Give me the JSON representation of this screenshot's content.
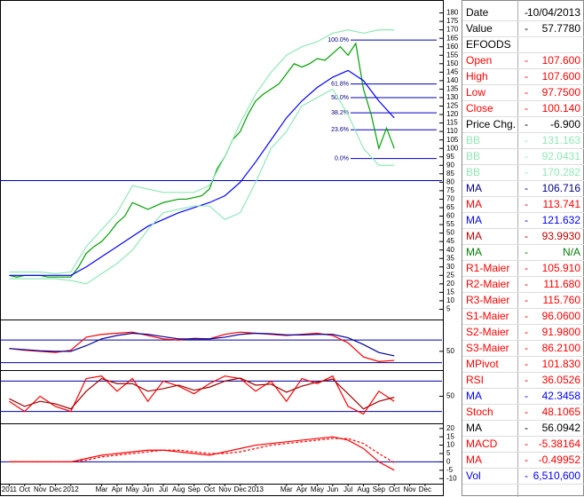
{
  "chart_data": [
    {
      "type": "line",
      "xlim": [
        -0.6,
        28.1
      ],
      "ylim": [
        0,
        185
      ],
      "yticks": [
        5,
        10,
        15,
        20,
        25,
        30,
        35,
        40,
        45,
        50,
        55,
        60,
        65,
        70,
        75,
        80,
        85,
        90,
        95,
        100,
        105,
        110,
        115,
        120,
        125,
        130,
        135,
        140,
        145,
        150,
        155,
        160,
        165,
        170,
        175,
        180
      ],
      "x": [
        0,
        1,
        2,
        3,
        4,
        5,
        6,
        7,
        8,
        9,
        10,
        11,
        12,
        13,
        14,
        15,
        16,
        17,
        18,
        19,
        20,
        21,
        22,
        23,
        24,
        25
      ],
      "series": [
        {
          "color": "#00a000",
          "x": [
            0,
            0.5,
            1,
            1.5,
            2,
            2.5,
            3,
            3.5,
            4,
            4.5,
            5,
            5.5,
            6,
            6.5,
            7,
            7.5,
            8,
            8.5,
            9,
            9.5,
            10,
            10.5,
            11,
            11.5,
            12,
            12.5,
            13,
            13.5,
            14,
            14.5,
            15,
            15.5,
            16,
            16.5,
            17,
            17.5,
            18,
            18.5,
            19,
            19.5,
            20,
            20.5,
            21,
            21.5,
            22,
            22.5,
            23,
            23.5,
            24,
            24.5,
            25
          ],
          "values": [
            25,
            24,
            25,
            25,
            25,
            24,
            24,
            24,
            24,
            30,
            38,
            42,
            45,
            50,
            56,
            60,
            68,
            66,
            64,
            66,
            68,
            69,
            70,
            70,
            71,
            72,
            76,
            88,
            95,
            105,
            110,
            120,
            128,
            132,
            135,
            138,
            144,
            150,
            148,
            150,
            153,
            152,
            156,
            160,
            155,
            162,
            135,
            120,
            100,
            112,
            100
          ]
        },
        {
          "color": "#0000ff",
          "values": [
            25,
            25,
            25,
            25,
            25,
            30,
            36,
            42,
            48,
            54,
            58,
            62,
            65,
            68,
            72,
            80,
            92,
            105,
            118,
            128,
            136,
            142,
            146,
            140,
            128,
            118
          ]
        },
        {
          "color": "#90e8b8",
          "values": [
            27,
            27,
            27,
            26,
            27,
            42,
            52,
            62,
            78,
            76,
            74,
            74,
            74,
            78,
            95,
            115,
            132,
            145,
            155,
            160,
            163,
            168,
            170,
            168,
            170,
            170
          ]
        },
        {
          "color": "#90e8b8",
          "values": [
            23,
            23,
            23,
            23,
            22,
            20,
            26,
            32,
            40,
            52,
            62,
            64,
            66,
            66,
            58,
            62,
            80,
            100,
            110,
            125,
            130,
            135,
            120,
            100,
            90,
            90
          ]
        }
      ],
      "hlines": [
        81
      ],
      "annotations": [
        {
          "label": "100.0%",
          "value": 164
        },
        {
          "label": "61.8%",
          "value": 138
        },
        {
          "label": "50.0%",
          "value": 130
        },
        {
          "label": "38.2%",
          "value": 121
        },
        {
          "label": "23.6%",
          "value": 111
        },
        {
          "label": "0.0%",
          "value": 94
        }
      ]
    },
    {
      "type": "line",
      "xlim": [
        -0.6,
        28.1
      ],
      "ylim": [
        20,
        100
      ],
      "yticks": [
        50
      ],
      "ref_lines": [
        70,
        30
      ],
      "x": [
        0,
        1,
        2,
        3,
        4,
        5,
        6,
        7,
        8,
        9,
        10,
        11,
        12,
        13,
        14,
        15,
        16,
        17,
        18,
        19,
        20,
        21,
        22,
        23,
        24,
        25
      ],
      "series": [
        {
          "color": "#ff0000",
          "values": [
            55,
            52,
            50,
            48,
            52,
            75,
            80,
            82,
            84,
            78,
            72,
            70,
            73,
            72,
            80,
            84,
            82,
            80,
            78,
            80,
            82,
            78,
            65,
            40,
            32,
            34
          ]
        },
        {
          "color": "#0000a0",
          "values": [
            55,
            53,
            51,
            50,
            50,
            60,
            72,
            78,
            82,
            80,
            76,
            72,
            72,
            72,
            75,
            80,
            82,
            81,
            79,
            79,
            80,
            80,
            74,
            62,
            48,
            42
          ]
        }
      ]
    },
    {
      "type": "line",
      "xlim": [
        -0.6,
        28.1
      ],
      "ylim": [
        0,
        100
      ],
      "yticks": [
        50
      ],
      "ref_lines": [
        80,
        20
      ],
      "x": [
        0,
        1,
        2,
        3,
        4,
        5,
        6,
        7,
        8,
        9,
        10,
        11,
        12,
        13,
        14,
        15,
        16,
        17,
        18,
        19,
        20,
        21,
        22,
        23,
        24,
        25
      ],
      "series": [
        {
          "color": "#ff0000",
          "values": [
            40,
            20,
            50,
            30,
            20,
            85,
            90,
            60,
            85,
            40,
            80,
            70,
            55,
            75,
            90,
            85,
            60,
            80,
            40,
            85,
            75,
            90,
            30,
            15,
            60,
            40
          ]
        },
        {
          "color": "#a00000",
          "values": [
            45,
            30,
            40,
            35,
            25,
            60,
            85,
            75,
            75,
            60,
            65,
            72,
            62,
            68,
            80,
            86,
            72,
            74,
            58,
            70,
            78,
            84,
            55,
            25,
            40,
            48
          ]
        }
      ]
    },
    {
      "type": "line",
      "xlim": [
        -0.6,
        28.1
      ],
      "ylim": [
        -12,
        22
      ],
      "yticks": [
        -10,
        -5,
        0,
        5,
        10,
        15,
        20
      ],
      "x": [
        0,
        1,
        2,
        3,
        4,
        5,
        6,
        7,
        8,
        9,
        10,
        11,
        12,
        13,
        14,
        15,
        16,
        17,
        18,
        19,
        20,
        21,
        22,
        23,
        24,
        25
      ],
      "xticks": [
        {
          "value": 0,
          "label": "2011"
        },
        {
          "value": 1,
          "label": "Oct"
        },
        {
          "value": 2,
          "label": "Nov"
        },
        {
          "value": 3,
          "label": "Dec"
        },
        {
          "value": 4,
          "label": "2012"
        },
        {
          "value": 6,
          "label": "Mar"
        },
        {
          "value": 7,
          "label": "Apr"
        },
        {
          "value": 8,
          "label": "May"
        },
        {
          "value": 9,
          "label": "Jun"
        },
        {
          "value": 10,
          "label": "Jul"
        },
        {
          "value": 11,
          "label": "Aug"
        },
        {
          "value": 12,
          "label": "Sep"
        },
        {
          "value": 13,
          "label": "Oct"
        },
        {
          "value": 14,
          "label": "Nov"
        },
        {
          "value": 15,
          "label": "Dec"
        },
        {
          "value": 16,
          "label": "2013"
        },
        {
          "value": 18,
          "label": "Mar"
        },
        {
          "value": 19,
          "label": "Apr"
        },
        {
          "value": 20,
          "label": "May"
        },
        {
          "value": 21,
          "label": "Jun"
        },
        {
          "value": 22,
          "label": "Jul"
        },
        {
          "value": 23,
          "label": "Aug"
        },
        {
          "value": 24,
          "label": "Sep"
        },
        {
          "value": 25,
          "label": "Oct"
        },
        {
          "value": 26,
          "label": "Nov"
        },
        {
          "value": 27,
          "label": "Dec"
        }
      ],
      "series": [
        {
          "color": "#ff0000",
          "values": [
            0,
            0,
            0,
            0,
            0,
            2,
            4,
            5,
            6,
            7,
            7,
            6,
            5,
            4,
            6,
            8,
            10,
            11,
            12,
            13,
            14,
            15,
            13,
            8,
            0,
            -5
          ]
        },
        {
          "color": "#ff0000",
          "dashed": true,
          "values": [
            0,
            0,
            0,
            0,
            0,
            1,
            3,
            4,
            5,
            6,
            7,
            7,
            6,
            5,
            5,
            6,
            8,
            10,
            11,
            12,
            13,
            14,
            14,
            11,
            5,
            -0.5
          ]
        }
      ]
    }
  ],
  "panel": {
    "sep": "-",
    "rows": [
      {
        "label": "Date",
        "value": "10/04/2013",
        "color": "#000000"
      },
      {
        "label": "Value",
        "value": "57.7780",
        "color": "#000000"
      },
      {
        "label": "EFOODS",
        "color": "#000000"
      },
      {
        "label": "Open",
        "value": "107.600",
        "color": "#ff0000"
      },
      {
        "label": "High",
        "value": "107.600",
        "color": "#ff0000"
      },
      {
        "label": "Low",
        "value": "97.7500",
        "color": "#ff0000"
      },
      {
        "label": "Close",
        "value": "100.140",
        "color": "#ff0000"
      },
      {
        "label": "Price Chg.",
        "value": "-6.900",
        "color": "#000000"
      },
      {
        "label": "BB",
        "value": "131.163",
        "color": "#90e8b8"
      },
      {
        "label": "BB",
        "value": "92.0431",
        "color": "#90e8b8"
      },
      {
        "label": "BB",
        "value": "170.282",
        "color": "#90e8b8"
      },
      {
        "label": "MA",
        "value": "106.716",
        "color": "#000080"
      },
      {
        "label": "MA",
        "value": "113.741",
        "color": "#ff0000"
      },
      {
        "label": "MA",
        "value": "121.632",
        "color": "#0000ff"
      },
      {
        "label": "MA",
        "value": "93.9930",
        "color": "#c00000"
      },
      {
        "label": "MA",
        "value": "N/A",
        "color": "#008000"
      },
      {
        "label": "R1-Maier",
        "value": "105.910",
        "color": "#ff0000"
      },
      {
        "label": "R2-Maier",
        "value": "111.680",
        "color": "#ff0000"
      },
      {
        "label": "R3-Maier",
        "value": "115.760",
        "color": "#ff0000"
      },
      {
        "label": "S1-Maier",
        "value": "96.0600",
        "color": "#ff0000"
      },
      {
        "label": "S2-Maier",
        "value": "91.9800",
        "color": "#ff0000"
      },
      {
        "label": "S3-Maier",
        "value": "86.2100",
        "color": "#ff0000"
      },
      {
        "label": "MPivot",
        "value": "101.830",
        "color": "#ff0000"
      },
      {
        "label": "RSI",
        "value": "36.0526",
        "color": "#ff0000"
      },
      {
        "label": "MA",
        "value": "42.3458",
        "color": "#0000ff"
      },
      {
        "label": "Stoch",
        "value": "48.1065",
        "color": "#ff0000"
      },
      {
        "label": "MA",
        "value": "56.0942",
        "color": "#000000"
      },
      {
        "label": "MACD",
        "value": "-5.38164",
        "color": "#ff0000"
      },
      {
        "label": "MA",
        "value": "-0.49952",
        "color": "#ff0000"
      },
      {
        "label": "Vol",
        "value": "6,510,600",
        "color": "#0000ff"
      }
    ]
  }
}
